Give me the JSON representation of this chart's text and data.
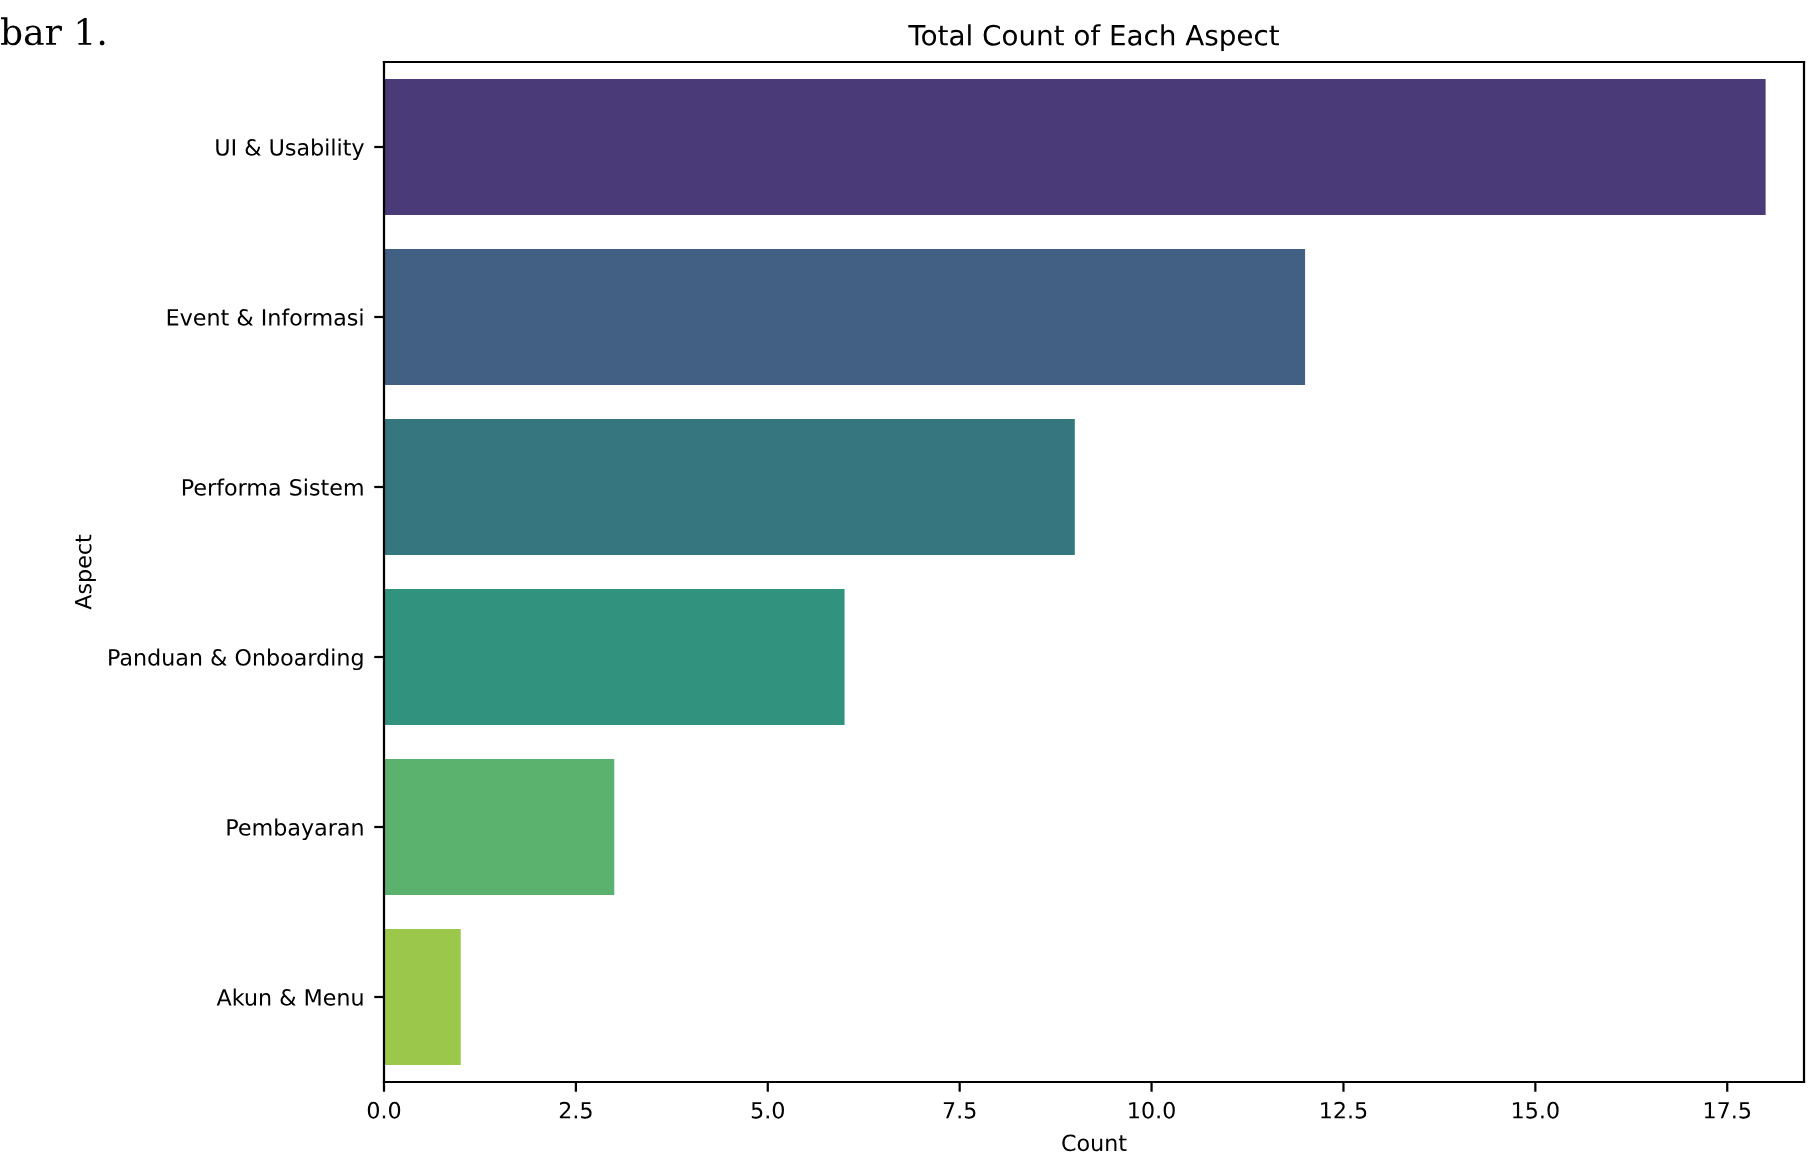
{
  "chart_data": {
    "type": "bar",
    "orientation": "horizontal",
    "title": "Total Count of Each Aspect",
    "xlabel": "Count",
    "ylabel": "Aspect",
    "categories": [
      "UI & Usability",
      "Event & Informasi",
      "Performa Sistem",
      "Panduan & Onboarding",
      "Pembayaran",
      "Akun & Menu"
    ],
    "values": [
      18,
      12,
      9,
      6,
      3,
      1
    ],
    "colors": [
      "#4a3a77",
      "#425f84",
      "#35767f",
      "#31937e",
      "#5ab26e",
      "#9bc84b"
    ],
    "xlim": [
      0,
      18.5
    ],
    "xticks": [
      {
        "value": 0,
        "label": "0.0"
      },
      {
        "value": 2.5,
        "label": "2.5"
      },
      {
        "value": 5,
        "label": "5.0"
      },
      {
        "value": 7.5,
        "label": "7.5"
      },
      {
        "value": 10,
        "label": "10.0"
      },
      {
        "value": 12.5,
        "label": "12.5"
      },
      {
        "value": 15,
        "label": "15.0"
      },
      {
        "value": 17.5,
        "label": "17.5"
      }
    ],
    "grid": false,
    "legend": false,
    "annotations": [
      "bar 1."
    ]
  }
}
